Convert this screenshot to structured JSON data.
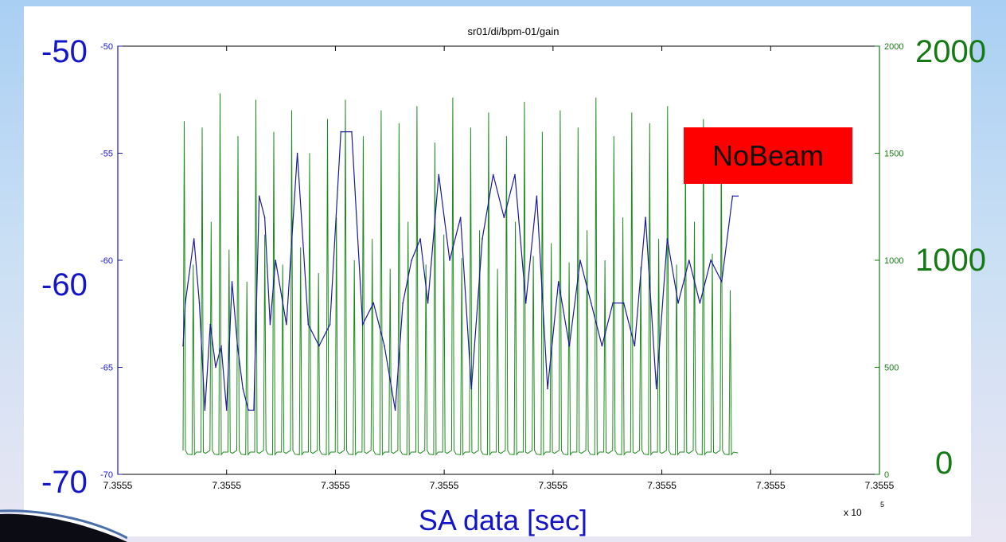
{
  "colors": {
    "left_axis": "#1414c8",
    "right_axis": "#157a15",
    "gain_series": "#1a1a9e",
    "right_series": "#1e8a1e",
    "badge": "#ff0000"
  },
  "overlay": {
    "left_ticks": [
      "-50",
      "-60",
      "-70"
    ],
    "right_ticks": [
      "2000",
      "1000",
      "0"
    ],
    "x_caption": "SA data [sec]",
    "badge": "NoBeam"
  },
  "chart_data": {
    "type": "line",
    "title": "sr01/di/bpm-01/gain",
    "x_tick_labels": [
      "7.3555",
      "7.3555",
      "7.3555",
      "7.3555",
      "7.3555",
      "7.3555",
      "7.3555",
      "7.3555"
    ],
    "x_exponent": "x 10",
    "x_exponent_power": "5",
    "x_range": [
      0,
      7
    ],
    "y_left": {
      "lim": [
        -70,
        -50
      ],
      "ticks": [
        -70,
        -65,
        -60,
        -55,
        -50
      ],
      "tick_labels": [
        "-70",
        "-65",
        "-60",
        "-55",
        "-50"
      ]
    },
    "y_right": {
      "lim": [
        0,
        2000
      ],
      "ticks": [
        0,
        500,
        1000,
        1500,
        2000
      ],
      "tick_labels": [
        "0",
        "500",
        "1000",
        "1500",
        "2000"
      ]
    },
    "series": [
      {
        "axis": "left",
        "color": "#1a1a9e",
        "x": [
          0.6,
          0.62,
          0.7,
          0.75,
          0.8,
          0.85,
          0.9,
          0.95,
          1.0,
          1.05,
          1.1,
          1.15,
          1.2,
          1.25,
          1.3,
          1.35,
          1.4,
          1.45,
          1.55,
          1.65,
          1.75,
          1.85,
          1.95,
          2.05,
          2.15,
          2.25,
          2.35,
          2.45,
          2.55,
          2.62,
          2.7,
          2.78,
          2.85,
          2.95,
          3.05,
          3.15,
          3.25,
          3.35,
          3.45,
          3.55,
          3.65,
          3.75,
          3.85,
          3.95,
          4.05,
          4.15,
          4.25,
          4.35,
          4.45,
          4.55,
          4.65,
          4.75,
          4.85,
          4.95,
          5.05,
          5.15,
          5.25,
          5.35,
          5.45,
          5.55,
          5.65,
          5.7
        ],
        "y": [
          -64,
          -62,
          -59,
          -62,
          -67,
          -63,
          -65,
          -64,
          -67,
          -61,
          -64,
          -66,
          -67,
          -67,
          -57,
          -58,
          -63,
          -60,
          -63,
          -55,
          -63,
          -64,
          -63,
          -54,
          -54,
          -63,
          -62,
          -64,
          -67,
          -62,
          -60,
          -59,
          -62,
          -56,
          -60,
          -58,
          -66,
          -59,
          -56,
          -58,
          -56,
          -62,
          -57,
          -66,
          -61,
          -64,
          -60,
          -62,
          -64,
          -62,
          -62,
          -64,
          -58,
          -66,
          -59,
          -62,
          -60,
          -62,
          -60,
          -61,
          -57,
          -57
        ],
        "spikes": {
          "x_start": 0.6,
          "x_end": 5.7,
          "count": 62,
          "baseline": 100,
          "peaks": [
            1650,
            980,
            1620,
            1180,
            1780,
            1050,
            1580,
            900,
            1750,
            1120,
            1600,
            980,
            1700,
            1060,
            1500,
            940,
            1660,
            1200,
            1750,
            1000,
            1580,
            1100,
            1700,
            960,
            1640,
            1180,
            1720,
            980,
            1550,
            1120,
            1760,
            1010,
            1620,
            1140,
            1690,
            960,
            1580,
            1180,
            1740,
            1020,
            1600,
            1080,
            1700,
            990,
            1620,
            1140,
            1760,
            1000,
            1580,
            1200,
            1690,
            970,
            1640,
            1100,
            1720,
            980,
            1560,
            1180,
            1660,
            1030,
            1580,
            860
          ]
        }
      }
    ]
  }
}
